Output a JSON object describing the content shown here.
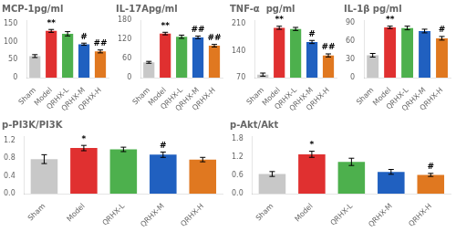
{
  "chart_data": [
    {
      "type": "bar",
      "title": "MCP-1pg/ml",
      "categories": [
        "Sham",
        "Model",
        "QRHX-L",
        "QRHX-M",
        "QRHX-H"
      ],
      "values": [
        60,
        130,
        122,
        93,
        73
      ],
      "errors": [
        4,
        4,
        6,
        3,
        4
      ],
      "colors": [
        "#c8c8c8",
        "#e03030",
        "#4db04d",
        "#2060c0",
        "#e07820"
      ],
      "ylim": [
        0,
        160
      ],
      "yticks": [
        0,
        50,
        100,
        150
      ],
      "annotations": [
        null,
        "**",
        null,
        "#",
        "##"
      ],
      "grid": false
    },
    {
      "type": "bar",
      "title": "IL-17Apg/ml",
      "categories": [
        "Sham",
        "Model",
        "QRHX-L",
        "QRHX-M",
        "QRHX-H"
      ],
      "values": [
        48,
        138,
        128,
        126,
        100
      ],
      "errors": [
        3,
        4,
        5,
        4,
        4
      ],
      "colors": [
        "#c8c8c8",
        "#e03030",
        "#4db04d",
        "#2060c0",
        "#e07820"
      ],
      "ylim": [
        0,
        180
      ],
      "yticks": [
        0,
        60,
        120,
        180
      ],
      "annotations": [
        null,
        "**",
        null,
        "##",
        "##"
      ],
      "grid": false
    },
    {
      "type": "bar",
      "title": "TNF-α  pg/ml",
      "categories": [
        "Sham",
        "Model",
        "QRHX-L",
        "QRHX-M",
        "QRHX-H"
      ],
      "values": [
        78,
        200,
        197,
        163,
        128
      ],
      "errors": [
        4,
        4,
        4,
        4,
        4
      ],
      "colors": [
        "#c8c8c8",
        "#e03030",
        "#4db04d",
        "#2060c0",
        "#e07820"
      ],
      "ylim": [
        70,
        220
      ],
      "yticks": [
        70,
        140,
        210
      ],
      "annotations": [
        null,
        "**",
        null,
        "#",
        "##"
      ],
      "grid": false
    },
    {
      "type": "bar",
      "title": "IL-1β pg/ml",
      "categories": [
        "Sham",
        "Model",
        "QRHX-L",
        "QRHX-M",
        "QRHX-H"
      ],
      "values": [
        37,
        83,
        82,
        77,
        65
      ],
      "errors": [
        3,
        2,
        3,
        3,
        3
      ],
      "colors": [
        "#c8c8c8",
        "#e03030",
        "#4db04d",
        "#2060c0",
        "#e07820"
      ],
      "ylim": [
        0,
        95
      ],
      "yticks": [
        0,
        30,
        60,
        90
      ],
      "annotations": [
        null,
        "**",
        null,
        null,
        "#"
      ],
      "grid": false
    },
    {
      "type": "bar",
      "title": "p-PI3K/PI3K",
      "categories": [
        "Sham",
        "Model",
        "QRHX-L",
        "QRHX-M",
        "QRHX-H"
      ],
      "values": [
        0.78,
        1.03,
        1.0,
        0.88,
        0.77
      ],
      "errors": [
        0.1,
        0.06,
        0.05,
        0.06,
        0.05
      ],
      "colors": [
        "#c8c8c8",
        "#e03030",
        "#4db04d",
        "#2060c0",
        "#e07820"
      ],
      "ylim": [
        0,
        1.3
      ],
      "yticks": [
        {
          "value": 0.0,
          "label": "0.0"
        },
        0.4,
        0.8,
        1.2
      ],
      "annotations": [
        null,
        "*",
        null,
        "#",
        null
      ],
      "grid": false
    },
    {
      "type": "bar",
      "title": "p-Akt/Akt",
      "categories": [
        "Sham",
        "Model",
        "QRHX-L",
        "QRHX-M",
        "QRHX-H"
      ],
      "values": [
        0.65,
        1.3,
        1.05,
        0.72,
        0.62
      ],
      "errors": [
        0.08,
        0.1,
        0.12,
        0.08,
        0.05
      ],
      "colors": [
        "#c8c8c8",
        "#e03030",
        "#4db04d",
        "#2060c0",
        "#e07820"
      ],
      "ylim": [
        0,
        1.9
      ],
      "yticks": [
        {
          "value": 0.0,
          "label": "0.0"
        },
        0.6,
        1.2,
        1.8
      ],
      "annotations": [
        null,
        "*",
        null,
        null,
        "#"
      ],
      "grid": false
    }
  ]
}
